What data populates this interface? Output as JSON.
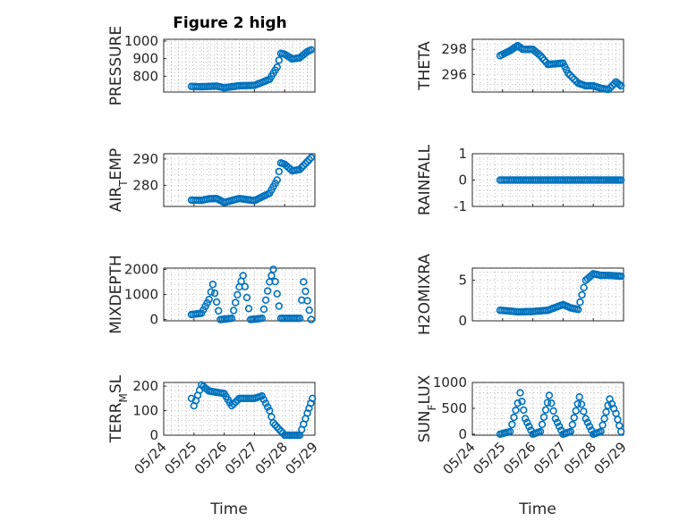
{
  "figure": {
    "title": "Figure 2 high",
    "xlabel": "Time",
    "marker_color": "#0072BD",
    "x_tick_labels": [
      "05/24",
      "05/25",
      "05/26",
      "05/27",
      "05/28",
      "05/29"
    ]
  },
  "chart_data": [
    {
      "type": "scatter",
      "ylabel": "PRESSURE",
      "ylim": [
        710,
        1010
      ],
      "yticks": [
        800,
        900,
        1000
      ],
      "title": "Figure 2 high",
      "xlabel": "",
      "grid": true,
      "minor_grid": true,
      "x": [
        "05/24 22:00",
        "05/25 06:00",
        "05/25 12:00",
        "05/25 18:00",
        "05/26 00:00",
        "05/26 12:00",
        "05/27 00:00",
        "05/27 12:00",
        "05/27 18:00",
        "05/27 21:00",
        "05/28 00:00",
        "05/28 06:00",
        "05/28 12:00",
        "05/28 18:00",
        "05/28 21:00"
      ],
      "y": [
        742,
        740,
        742,
        744,
        734,
        746,
        748,
        782,
        852,
        930,
        925,
        898,
        905,
        940,
        950
      ]
    },
    {
      "type": "scatter",
      "ylabel": "THETA",
      "ylim": [
        294.6,
        298.8
      ],
      "yticks": [
        296,
        298
      ],
      "title": "",
      "xlabel": "",
      "grid": true,
      "minor_grid": true,
      "x": [
        "05/24 22:00",
        "05/25 06:00",
        "05/25 12:00",
        "05/25 16:00",
        "05/26 00:00",
        "05/26 06:00",
        "05/26 12:00",
        "05/27 00:00",
        "05/27 04:00",
        "05/27 12:00",
        "05/27 18:00",
        "05/28 00:00",
        "05/28 06:00",
        "05/28 12:00",
        "05/28 18:00",
        "05/28 22:00"
      ],
      "y": [
        297.5,
        297.9,
        298.3,
        298.0,
        298.0,
        297.5,
        296.8,
        296.9,
        296.1,
        295.3,
        295.1,
        295.1,
        294.9,
        294.8,
        295.4,
        295.1
      ]
    },
    {
      "type": "scatter",
      "ylabel": "AIR_TEMP",
      "ylim": [
        272,
        292
      ],
      "yticks": [
        280,
        290
      ],
      "title": "",
      "xlabel": "",
      "grid": true,
      "minor_grid": true,
      "x": [
        "05/24 22:00",
        "05/25 06:00",
        "05/25 12:00",
        "05/25 18:00",
        "05/26 00:00",
        "05/26 12:00",
        "05/27 00:00",
        "05/27 12:00",
        "05/27 18:00",
        "05/27 21:00",
        "05/28 00:00",
        "05/28 06:00",
        "05/28 12:00",
        "05/28 18:00",
        "05/28 21:00"
      ],
      "y": [
        274.4,
        274.3,
        274.9,
        275.0,
        273.5,
        275.0,
        274.2,
        277.0,
        282.0,
        288.5,
        288.0,
        285.5,
        286.0,
        289.0,
        290.5
      ]
    },
    {
      "type": "scatter",
      "ylabel": "RAINFALL",
      "ylim": [
        -1,
        1
      ],
      "yticks": [
        -1,
        0,
        1
      ],
      "title": "",
      "xlabel": "",
      "grid": true,
      "minor_grid": true,
      "x": [
        "05/24 22:00",
        "05/25 06:00",
        "05/25 12:00",
        "05/26 00:00",
        "05/26 12:00",
        "05/27 00:00",
        "05/27 12:00",
        "05/28 00:00",
        "05/28 12:00",
        "05/28 22:00"
      ],
      "y": [
        0,
        0,
        0,
        0,
        0,
        0,
        0,
        0,
        0,
        0
      ]
    },
    {
      "type": "scatter",
      "ylabel": "MIXDEPTH",
      "ylim": [
        -50,
        2050
      ],
      "yticks": [
        0,
        1000,
        2000
      ],
      "title": "",
      "xlabel": "",
      "grid": true,
      "minor_grid": true,
      "x": [
        "05/24 22:00",
        "05/25 06:00",
        "05/25 12:00",
        "05/25 15:00",
        "05/25 21:00",
        "05/26 06:00",
        "05/26 12:00",
        "05/26 15:00",
        "05/26 21:00",
        "05/27 06:00",
        "05/27 12:00",
        "05/27 15:00",
        "05/27 21:00",
        "05/28 06:00",
        "05/28 12:00",
        "05/28 15:00",
        "05/28 21:00"
      ],
      "y": [
        200,
        250,
        800,
        1400,
        0,
        50,
        1300,
        1750,
        0,
        50,
        1500,
        2000,
        50,
        50,
        50,
        1500,
        0
      ]
    },
    {
      "type": "scatter",
      "ylabel": "H2OMIXRA",
      "ylim": [
        0,
        6.5
      ],
      "yticks": [
        0,
        5
      ],
      "title": "",
      "xlabel": "",
      "grid": true,
      "minor_grid": true,
      "x": [
        "05/24 22:00",
        "05/25 06:00",
        "05/25 12:00",
        "05/26 00:00",
        "05/26 12:00",
        "05/27 00:00",
        "05/27 06:00",
        "05/27 12:00",
        "05/27 18:00",
        "05/28 00:00",
        "05/28 06:00",
        "05/28 12:00",
        "05/28 22:00"
      ],
      "y": [
        1.3,
        1.2,
        1.1,
        1.15,
        1.3,
        2.0,
        1.6,
        1.4,
        5.0,
        5.8,
        5.6,
        5.6,
        5.5
      ]
    },
    {
      "type": "scatter",
      "ylabel": "TERR_MSL",
      "ylim": [
        0,
        215
      ],
      "yticks": [
        0,
        100,
        200
      ],
      "title": "",
      "xlabel": "",
      "grid": true,
      "minor_grid": true,
      "x": [
        "05/24 22:00",
        "05/25 00:00",
        "05/25 06:00",
        "05/25 12:00",
        "05/26 00:00",
        "05/26 06:00",
        "05/26 12:00",
        "05/27 00:00",
        "05/27 06:00",
        "05/27 12:00",
        "05/27 15:00",
        "05/28 00:00",
        "05/28 06:00",
        "05/28 12:00",
        "05/28 18:00",
        "05/28 22:00"
      ],
      "y": [
        150,
        120,
        205,
        180,
        170,
        120,
        150,
        150,
        160,
        100,
        50,
        0,
        0,
        0,
        90,
        150
      ]
    },
    {
      "type": "scatter",
      "ylabel": "SUN_FLUX",
      "ylim": [
        -20,
        1000
      ],
      "yticks": [
        0,
        500,
        1000
      ],
      "title": "",
      "xlabel": "",
      "grid": true,
      "minor_grid": true,
      "x": [
        "05/24 22:00",
        "05/25 06:00",
        "05/25 12:00",
        "05/25 14:00",
        "05/25 18:00",
        "05/26 00:00",
        "05/26 06:00",
        "05/26 13:00",
        "05/26 18:00",
        "05/27 00:00",
        "05/27 06:00",
        "05/27 13:00",
        "05/27 18:00",
        "05/28 00:00",
        "05/28 06:00",
        "05/28 13:00",
        "05/28 18:00",
        "05/28 22:00"
      ],
      "y": [
        0,
        50,
        600,
        800,
        300,
        0,
        50,
        750,
        300,
        0,
        50,
        720,
        300,
        0,
        50,
        680,
        400,
        50
      ]
    }
  ]
}
